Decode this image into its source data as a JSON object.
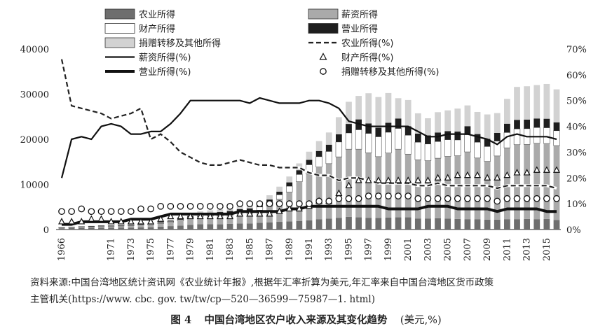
{
  "source_note": {
    "line1": "资料来源:中国台湾地区统计资讯网《农业统计年报》,根据年汇率折算为美元,年汇率来自中国台湾地区货币政策",
    "line2": "主管机关(https://www. cbc. gov. tw/tw/cp—520—36599—75987—1. html)"
  },
  "caption": {
    "figure_no": "图 4",
    "title": "中国台湾地区农户收入来源及其变化趋势",
    "unit": "(美元,%)"
  },
  "chart_data": {
    "type": "bar",
    "stacked": true,
    "years": [
      1966,
      1967,
      1968,
      1969,
      1970,
      1971,
      1972,
      1973,
      1974,
      1975,
      1976,
      1977,
      1978,
      1979,
      1980,
      1981,
      1982,
      1983,
      1984,
      1985,
      1986,
      1987,
      1988,
      1989,
      1990,
      1991,
      1992,
      1993,
      1994,
      1995,
      1996,
      1997,
      1998,
      1999,
      2000,
      2001,
      2002,
      2003,
      2004,
      2005,
      2006,
      2007,
      2008,
      2009,
      2010,
      2011,
      2012,
      2013,
      2014,
      2015,
      2016
    ],
    "x_tick_labels": [
      "1966",
      "1971",
      "1973",
      "1975",
      "1977",
      "1979",
      "1981",
      "1983",
      "1985",
      "1987",
      "1989",
      "1991",
      "1993",
      "1995",
      "1997",
      "1999",
      "2001",
      "2003",
      "2005",
      "2007",
      "2009",
      "2011",
      "2013",
      "2015"
    ],
    "x_tick_label_years": [
      1966,
      1971,
      1973,
      1975,
      1977,
      1979,
      1981,
      1983,
      1985,
      1987,
      1989,
      1991,
      1993,
      1995,
      1997,
      1999,
      2001,
      2003,
      2005,
      2007,
      2009,
      2011,
      2013,
      2015
    ],
    "left_axis": {
      "ticks": [
        0,
        10000,
        20000,
        30000,
        40000
      ],
      "tick_labels": [
        "0",
        "10000",
        "20000",
        "30000",
        "40000"
      ],
      "ylim": [
        0,
        40000
      ]
    },
    "right_axis": {
      "ticks": [
        0,
        10,
        20,
        30,
        40,
        50,
        60,
        70
      ],
      "tick_labels": [
        "0%",
        "10%",
        "20%",
        "30%",
        "40%",
        "50%",
        "60%",
        "70%"
      ],
      "ylim": [
        0,
        70
      ]
    },
    "bar_series": [
      {
        "name": "农业所得",
        "color": "#6e6e6e",
        "values": [
          280,
          310,
          340,
          380,
          410,
          420,
          440,
          430,
          480,
          520,
          640,
          760,
          880,
          1050,
          1180,
          1200,
          1150,
          1250,
          1350,
          1330,
          1490,
          1600,
          1700,
          1800,
          1900,
          2050,
          2250,
          2400,
          2600,
          2800,
          2700,
          2600,
          2550,
          2650,
          2700,
          2700,
          2450,
          2450,
          2500,
          2400,
          2350,
          2300,
          2250,
          2200,
          2200,
          2300,
          2300,
          2350,
          2300,
          2350,
          2100
        ]
      },
      {
        "name": "薪资所得",
        "color": "#aaaaaa",
        "values": [
          120,
          180,
          230,
          250,
          300,
          290,
          340,
          400,
          490,
          540,
          690,
          840,
          1050,
          1350,
          1700,
          1800,
          1900,
          1950,
          2200,
          2300,
          2800,
          3600,
          5000,
          6500,
          8700,
          10300,
          11600,
          12200,
          13500,
          15000,
          15100,
          14400,
          13600,
          14300,
          15100,
          14000,
          13000,
          12800,
          13300,
          13800,
          14000,
          14900,
          13600,
          12900,
          14100,
          15800,
          16500,
          16500,
          16800,
          16700,
          16500
        ]
      },
      {
        "name": "财产所得",
        "color": "#ffffff",
        "values": [
          50,
          60,
          70,
          80,
          110,
          110,
          110,
          120,
          150,
          140,
          170,
          200,
          250,
          300,
          350,
          370,
          420,
          480,
          530,
          600,
          700,
          850,
          1000,
          1300,
          1600,
          2000,
          2300,
          2700,
          3300,
          3600,
          4300,
          4300,
          4400,
          4600,
          4600,
          4200,
          3900,
          3700,
          3700,
          3700,
          3500,
          3800,
          3500,
          3300,
          3300,
          3400,
          3500,
          3500,
          3500,
          3500,
          3300
        ]
      },
      {
        "name": "营业所得",
        "color": "#1e1e1e",
        "values": [
          30,
          40,
          50,
          70,
          80,
          80,
          90,
          100,
          130,
          140,
          160,
          180,
          230,
          290,
          350,
          380,
          400,
          420,
          450,
          460,
          500,
          600,
          700,
          850,
          950,
          1100,
          1250,
          1500,
          1700,
          2000,
          2300,
          2200,
          2000,
          2100,
          2200,
          2000,
          1900,
          1900,
          2000,
          1900,
          1850,
          1900,
          1800,
          1700,
          1800,
          1950,
          2000,
          2000,
          2000,
          2000,
          1850
        ]
      },
      {
        "name": "捐赠转移及其他所得",
        "color": "#d2d2d2",
        "values": [
          20,
          30,
          40,
          50,
          60,
          70,
          80,
          100,
          150,
          170,
          190,
          250,
          300,
          400,
          450,
          500,
          550,
          650,
          700,
          750,
          850,
          950,
          1100,
          1300,
          1500,
          1800,
          2200,
          2700,
          3800,
          4900,
          5200,
          6700,
          6800,
          6600,
          4500,
          5800,
          4500,
          3800,
          4500,
          4600,
          5100,
          4600,
          4900,
          5400,
          4400,
          5500,
          7300,
          7400,
          7400,
          7700,
          7300
        ]
      }
    ],
    "line_series": [
      {
        "name": "农业所得(%)",
        "style": "dashed",
        "values": [
          66,
          48,
          47,
          46,
          45,
          43,
          44,
          45,
          47,
          35,
          37,
          34,
          30,
          28,
          26,
          25,
          25,
          26,
          27,
          26,
          25,
          25,
          24,
          24,
          24,
          22,
          21,
          21,
          19,
          20,
          20,
          19,
          18,
          18,
          18,
          18,
          17,
          17,
          18,
          17,
          17,
          17,
          17,
          17,
          16,
          17,
          17,
          17,
          17,
          17,
          16
        ]
      },
      {
        "name": "薪资所得(%)",
        "style": "solid",
        "values": [
          20,
          35,
          36,
          35,
          40,
          41,
          40,
          37,
          37,
          38,
          38,
          41,
          45,
          50,
          50,
          50,
          50,
          50,
          50,
          49,
          51,
          50,
          49,
          49,
          49,
          50,
          50,
          49,
          47,
          42,
          41,
          40,
          40,
          40,
          40,
          40,
          38,
          36,
          36,
          37,
          37,
          37,
          36,
          35,
          33,
          36,
          37,
          36,
          36,
          36,
          35
        ]
      },
      {
        "name": "营业所得(%)",
        "style": "thick",
        "values": [
          2,
          2,
          3,
          3,
          3,
          3,
          3,
          4,
          4,
          4,
          5,
          6,
          6,
          6,
          6,
          6,
          6,
          6,
          7,
          7,
          7,
          7,
          7,
          8,
          8,
          9,
          9,
          9,
          9,
          9,
          9,
          9,
          9,
          8,
          8,
          8,
          8,
          9,
          9,
          9,
          8,
          8,
          8,
          8,
          7,
          8,
          8,
          8,
          8,
          7,
          7
        ]
      }
    ],
    "marker_series": [
      {
        "name": "财产所得(%)",
        "marker": "triangle",
        "values": [
          3,
          3,
          3,
          4,
          4,
          3,
          3,
          3,
          3,
          3,
          4,
          5,
          5,
          5,
          5,
          5,
          5,
          5,
          6,
          6,
          6,
          6,
          7,
          8,
          8,
          9,
          11,
          11,
          14,
          17,
          19,
          19,
          19,
          19,
          19,
          19,
          19,
          19,
          20,
          20,
          21,
          21,
          21,
          20,
          20,
          21,
          22,
          22,
          23,
          23,
          23
        ]
      },
      {
        "name": "捐赠转移及其他所得(%)",
        "marker": "circle",
        "values": [
          7,
          7,
          8,
          7,
          7,
          7,
          7,
          7,
          8,
          8,
          9,
          9,
          9,
          9,
          9,
          9,
          9,
          9,
          10,
          10,
          10,
          10,
          10,
          10,
          10,
          10,
          11,
          11,
          12,
          12,
          12,
          13,
          13,
          13,
          13,
          13,
          12,
          12,
          12,
          12,
          12,
          12,
          12,
          12,
          11,
          12,
          12,
          12,
          12,
          12,
          12
        ]
      }
    ],
    "legend": {
      "position": "top",
      "rows": [
        [
          "农业所得",
          "薪资所得"
        ],
        [
          "财产所得",
          "营业所得"
        ],
        [
          "捐赠转移及其他所得",
          "农业所得(%)"
        ],
        [
          "薪资所得(%)",
          "财产所得(%)"
        ],
        [
          "营业所得(%)",
          "捐赠转移及其他所得(%)"
        ]
      ]
    }
  }
}
